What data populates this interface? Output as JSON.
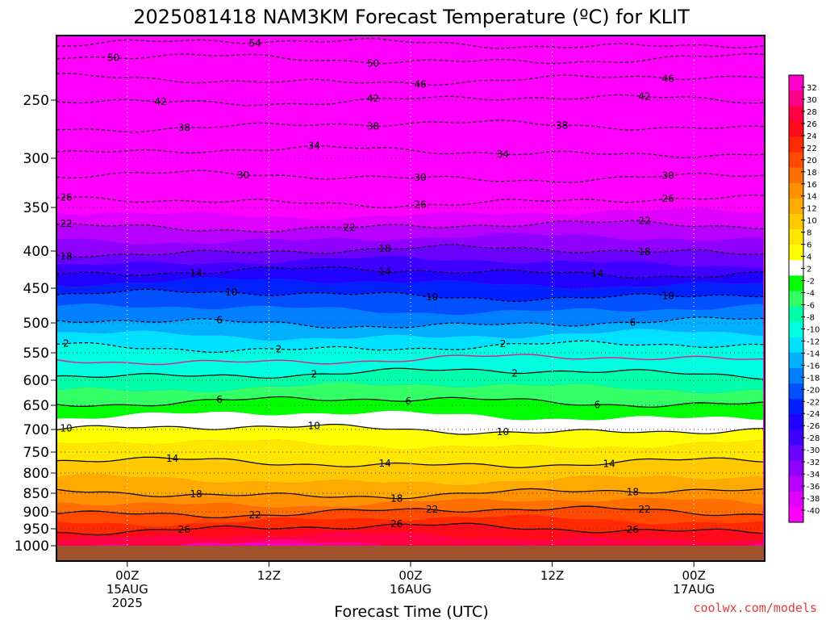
{
  "chart_data": {
    "type": "heatmap",
    "title": "2025081418 NAM3KM Forecast Temperature (ºC) for KLIT",
    "xlabel": "Forecast Time (UTC)",
    "credit": "coolwx.com/models",
    "y_axis": {
      "quantity": "pressure (hPa)",
      "range": [
        1000,
        190
      ],
      "ticks": [
        250,
        300,
        350,
        400,
        450,
        500,
        550,
        600,
        650,
        700,
        750,
        800,
        850,
        900,
        950,
        1000
      ],
      "dotted_grid": true
    },
    "x_axis": {
      "range": [
        "2025-08-14T18Z",
        "2025-08-17T06Z"
      ],
      "ticks": [
        {
          "time": "2025-08-15T00Z",
          "lines": [
            "00Z",
            "15AUG",
            "2025"
          ]
        },
        {
          "time": "2025-08-15T12Z",
          "lines": [
            "12Z"
          ]
        },
        {
          "time": "2025-08-16T00Z",
          "lines": [
            "00Z",
            "16AUG"
          ]
        },
        {
          "time": "2025-08-16T12Z",
          "lines": [
            "12Z"
          ]
        },
        {
          "time": "2025-08-17T00Z",
          "lines": [
            "00Z",
            "17AUG"
          ]
        }
      ],
      "dotted_grid": true
    },
    "colorbar": {
      "levels": [
        32,
        30,
        28,
        26,
        24,
        22,
        20,
        18,
        16,
        14,
        12,
        10,
        8,
        6,
        4,
        2,
        -2,
        -4,
        -6,
        -8,
        -10,
        -12,
        -14,
        -16,
        -18,
        -20,
        -22,
        -24,
        -26,
        -28,
        -30,
        -32,
        -34,
        -36,
        -38,
        -40
      ],
      "colors": [
        "#ff00cc",
        "#ff0088",
        "#ff0044",
        "#ff0a1a",
        "#ff2a00",
        "#ff4a00",
        "#ff7000",
        "#ff9000",
        "#ffaa00",
        "#ffc800",
        "#ffe600",
        "#ffff00",
        "#ffffff",
        "#00ff00",
        "#33ff66",
        "#00ffaa",
        "#00ffe0",
        "#00e0ff",
        "#00b0ff",
        "#0080ff",
        "#0050ff",
        "#0020ff",
        "#2000ff",
        "#4000ff",
        "#6a00ff",
        "#9000ff",
        "#b800ff",
        "#e000ff",
        "#ff00ff"
      ]
    },
    "temperature_profile": [
      {
        "p": 1000,
        "t": 30
      },
      {
        "p": 975,
        "t": 28
      },
      {
        "p": 950,
        "t": 26
      },
      {
        "p": 925,
        "t": 24
      },
      {
        "p": 900,
        "t": 22
      },
      {
        "p": 850,
        "t": 18
      },
      {
        "p": 800,
        "t": 15
      },
      {
        "p": 750,
        "t": 13
      },
      {
        "p": 700,
        "t": 10
      },
      {
        "p": 650,
        "t": 6.5
      },
      {
        "p": 600,
        "t": 3
      },
      {
        "p": 575,
        "t": 1
      },
      {
        "p": 550,
        "t": -1
      },
      {
        "p": 500,
        "t": -6
      },
      {
        "p": 450,
        "t": -11
      },
      {
        "p": 400,
        "t": -18
      },
      {
        "p": 350,
        "t": -25
      },
      {
        "p": 300,
        "t": -33
      },
      {
        "p": 250,
        "t": -42
      },
      {
        "p": 200,
        "t": -53
      }
    ],
    "dashed_contours": [
      {
        "t": -54,
        "label_positions": [
          [
            "2025-08-15T10Z"
          ]
        ]
      },
      {
        "t": -50,
        "label_positions": [
          [
            "2025-08-14T22Z"
          ],
          [
            "2025-08-15T20Z"
          ]
        ]
      },
      {
        "t": -46,
        "label_positions": [
          [
            "2025-08-16T00Z"
          ],
          [
            "2025-08-16T21Z"
          ]
        ]
      },
      {
        "t": -42,
        "label_positions": [
          [
            "2025-08-15T02Z"
          ],
          [
            "2025-08-15T20Z"
          ],
          [
            "2025-08-16T19Z"
          ]
        ]
      },
      {
        "t": -38,
        "label_positions": [
          [
            "2025-08-15T04Z"
          ],
          [
            "2025-08-15T20Z"
          ],
          [
            "2025-08-16T12Z"
          ]
        ]
      },
      {
        "t": -34,
        "label_positions": [
          [
            "2025-08-15T15Z"
          ],
          [
            "2025-08-16T07Z"
          ]
        ]
      },
      {
        "t": -30,
        "label_positions": [
          [
            "2025-08-15T09Z"
          ],
          [
            "2025-08-16T00Z"
          ],
          [
            "2025-08-16T21Z"
          ]
        ]
      },
      {
        "t": -26,
        "label_positions": [
          [
            "2025-08-14T18Z"
          ],
          [
            "2025-08-16T00Z"
          ],
          [
            "2025-08-16T21Z"
          ]
        ]
      },
      {
        "t": -22,
        "label_positions": [
          [
            "2025-08-14T18Z"
          ],
          [
            "2025-08-15T18Z"
          ],
          [
            "2025-08-16T19Z"
          ]
        ]
      },
      {
        "t": -18,
        "label_positions": [
          [
            "2025-08-14T18Z"
          ],
          [
            "2025-08-15T21Z"
          ],
          [
            "2025-08-16T19Z"
          ]
        ]
      },
      {
        "t": -14,
        "label_positions": [
          [
            "2025-08-15T05Z"
          ],
          [
            "2025-08-15T21Z"
          ],
          [
            "2025-08-16T15Z"
          ]
        ]
      },
      {
        "t": -10,
        "label_positions": [
          [
            "2025-08-15T08Z"
          ],
          [
            "2025-08-16T01Z"
          ],
          [
            "2025-08-16T21Z"
          ]
        ]
      },
      {
        "t": -6,
        "label_positions": [
          [
            "2025-08-15T07Z"
          ],
          [
            "2025-08-16T18Z"
          ]
        ]
      },
      {
        "t": -2,
        "label_positions": [
          [
            "2025-08-14T18Z"
          ],
          [
            "2025-08-15T12Z"
          ],
          [
            "2025-08-16T07Z"
          ]
        ]
      }
    ],
    "solid_contours": [
      {
        "t": 2,
        "label_positions": [
          [
            "2025-08-15T15Z"
          ],
          [
            "2025-08-16T08Z"
          ]
        ]
      },
      {
        "t": 6,
        "label_positions": [
          [
            "2025-08-15T07Z"
          ],
          [
            "2025-08-15T23Z"
          ],
          [
            "2025-08-16T15Z"
          ]
        ]
      },
      {
        "t": 10,
        "label_positions": [
          [
            "2025-08-14T18Z"
          ],
          [
            "2025-08-15T15Z"
          ],
          [
            "2025-08-16T07Z"
          ]
        ]
      },
      {
        "t": 14,
        "label_positions": [
          [
            "2025-08-15T03Z"
          ],
          [
            "2025-08-15T21Z"
          ],
          [
            "2025-08-16T16Z"
          ]
        ]
      },
      {
        "t": 18,
        "label_positions": [
          [
            "2025-08-15T05Z"
          ],
          [
            "2025-08-15T22Z"
          ],
          [
            "2025-08-16T18Z"
          ]
        ]
      },
      {
        "t": 22,
        "label_positions": [
          [
            "2025-08-15T10Z"
          ],
          [
            "2025-08-16T01Z"
          ],
          [
            "2025-08-16T19Z"
          ]
        ]
      },
      {
        "t": 26,
        "label_positions": [
          [
            "2025-08-15T04Z"
          ],
          [
            "2025-08-15T22Z"
          ],
          [
            "2025-08-16T18Z"
          ]
        ]
      }
    ],
    "freezing_line": {
      "t": 0,
      "color": "#e0208a",
      "style": "solid"
    },
    "ground_color": "#a0522d"
  }
}
